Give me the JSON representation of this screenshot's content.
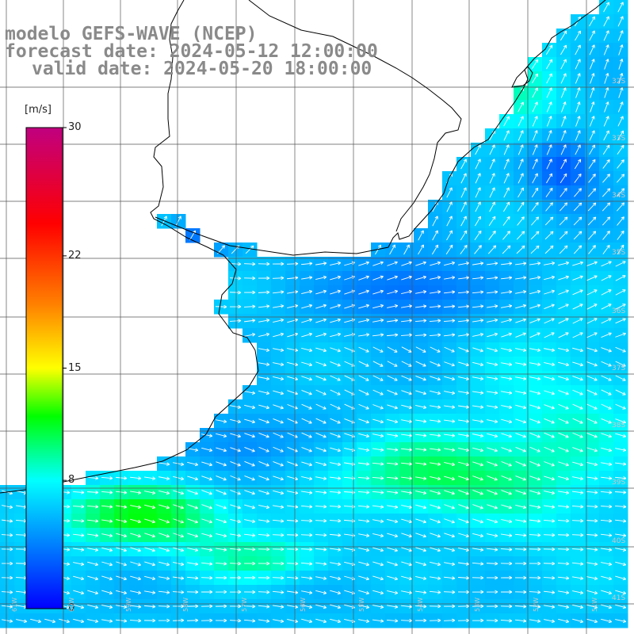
{
  "title": {
    "line1": "modelo GEFS-WAVE (NCEP)",
    "line2": "forecast date: 2024-05-12 12:00:00",
    "line3": "valid date: 2024-05-20 18:00:00"
  },
  "colorbar": {
    "unit": "[m/s]",
    "ticks": [
      "30",
      "22",
      "15",
      "8",
      "0"
    ],
    "tick_values": [
      30,
      22,
      15,
      8,
      0
    ],
    "min": 0,
    "max": 30,
    "stops": [
      {
        "v": 0,
        "color": "#0000ff"
      },
      {
        "v": 4,
        "color": "#0080ff"
      },
      {
        "v": 8,
        "color": "#00ffff"
      },
      {
        "v": 12,
        "color": "#00ff00"
      },
      {
        "v": 15,
        "color": "#ffff00"
      },
      {
        "v": 19,
        "color": "#ff8000"
      },
      {
        "v": 24,
        "color": "#ff0000"
      },
      {
        "v": 30,
        "color": "#c00080"
      }
    ]
  },
  "map": {
    "lat_labels": [
      "32S",
      "33S",
      "34S",
      "35S",
      "36S",
      "37S",
      "38S",
      "39S",
      "40S",
      "41S"
    ],
    "lon_labels": [
      "61W",
      "60W",
      "59W",
      "58W",
      "57W",
      "56W",
      "55W",
      "54W",
      "53W",
      "52W",
      "51W"
    ],
    "land_color": "#ffffff",
    "grid_color": "#555555",
    "coast_color": "#000000",
    "arrow_color": "#ffffff"
  }
}
